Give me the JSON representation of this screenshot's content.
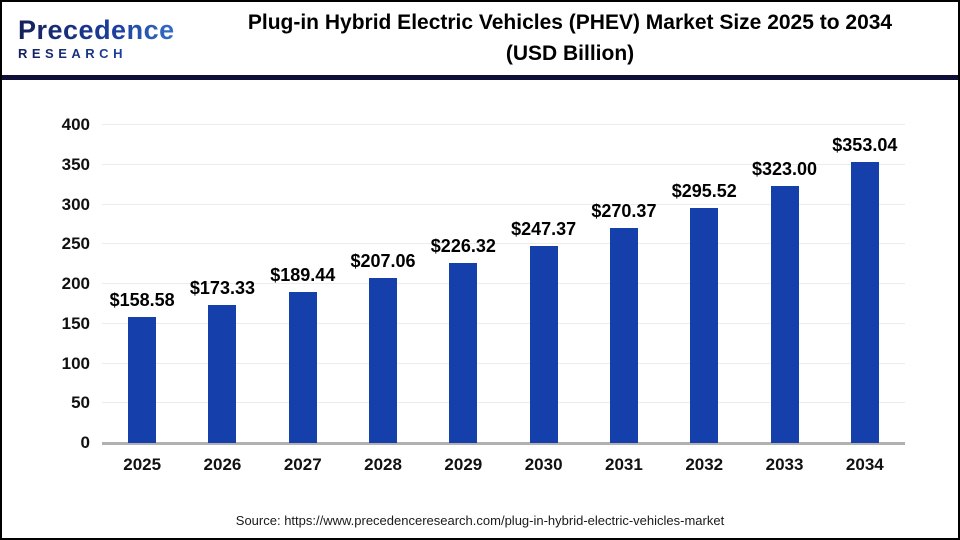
{
  "header": {
    "logo": {
      "name": "Precedence",
      "sub": "RESEARCH"
    },
    "title_lines": [
      "Plug-in Hybrid Electric Vehicles (PHEV) Market Size 2025 to 2034",
      "(USD Billion)"
    ]
  },
  "chart_data": {
    "type": "bar",
    "title": "Plug-in Hybrid Electric Vehicles (PHEV) Market Size 2025 to 2034 (USD Billion)",
    "categories": [
      "2025",
      "2026",
      "2027",
      "2028",
      "2029",
      "2030",
      "2031",
      "2032",
      "2033",
      "2034"
    ],
    "values": [
      158.58,
      173.33,
      189.44,
      207.06,
      226.32,
      247.37,
      270.37,
      295.52,
      323.0,
      353.04
    ],
    "labels": [
      "$158.58",
      "$173.33",
      "$189.44",
      "$207.06",
      "$226.32",
      "$247.37",
      "$270.37",
      "$295.52",
      "$323.00",
      "$353.04"
    ],
    "xlabel": "",
    "ylabel": "",
    "ylim": [
      0,
      400
    ],
    "yticks": [
      0,
      50,
      100,
      150,
      200,
      250,
      300,
      350,
      400
    ],
    "grid": true,
    "legend": false,
    "bar_color": "#1540ab"
  },
  "footer": {
    "source": "Source: https://www.precedenceresearch.com/plug-in-hybrid-electric-vehicles-market"
  },
  "colors": {
    "bar": "#1540ab",
    "header_rule": "#0f0f3a",
    "grid": "#ececec",
    "baseline": "#b1b1b1",
    "logo_navy": "#14215a",
    "logo_blue": "#3e82d6"
  }
}
